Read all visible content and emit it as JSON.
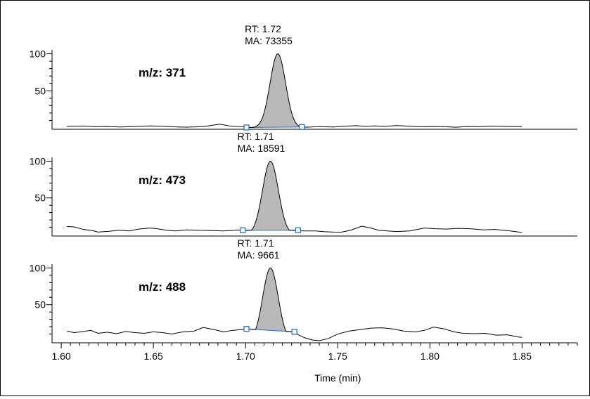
{
  "chart_data": {
    "type": "line",
    "xlabel": "Time (min)",
    "xlim": [
      1.595,
      1.88
    ],
    "x_ticks": [
      "1.60",
      "1.65",
      "1.70",
      "1.75",
      "1.80",
      "1.85"
    ],
    "x_tick_values": [
      1.6,
      1.65,
      1.7,
      1.75,
      1.8,
      1.85
    ],
    "ylim": [
      0,
      110
    ],
    "y_ticks": [
      "50",
      "100"
    ],
    "y_tick_values": [
      50,
      100
    ],
    "colors": {
      "trace": "#000000",
      "peak_fill": "#b9b9b9",
      "baseline": "#3a7fd0",
      "marker": "#2a6fcf"
    },
    "panels": [
      {
        "trace_label": "m/z: 371",
        "peak": {
          "rt_label": "RT: 1.72",
          "ma_label": "MA: 73355",
          "rt": 1.7175,
          "sigma": 0.0042,
          "height": 100,
          "start": 1.7005,
          "end": 1.7305,
          "baseline_start": 0.5,
          "baseline_end": 1.2,
          "noise": [
            [
              1.603,
              2.0
            ],
            [
              1.612,
              2.5
            ],
            [
              1.618,
              1.5
            ],
            [
              1.625,
              1.8
            ],
            [
              1.632,
              1.2
            ],
            [
              1.641,
              1.9
            ],
            [
              1.648,
              2.6
            ],
            [
              1.655,
              2.3
            ],
            [
              1.66,
              1.4
            ],
            [
              1.668,
              1.0
            ],
            [
              1.673,
              1.3
            ],
            [
              1.678,
              2.0
            ],
            [
              1.686,
              5.0
            ],
            [
              1.692,
              2.2
            ],
            [
              1.697,
              1.6
            ],
            [
              1.7,
              1.4
            ],
            [
              1.733,
              1.0
            ],
            [
              1.74,
              1.6
            ],
            [
              1.748,
              1.2
            ],
            [
              1.755,
              2.4
            ],
            [
              1.76,
              3.0
            ],
            [
              1.765,
              2.0
            ],
            [
              1.77,
              2.6
            ],
            [
              1.775,
              2.0
            ],
            [
              1.782,
              3.1
            ],
            [
              1.789,
              2.2
            ],
            [
              1.795,
              1.4
            ],
            [
              1.8,
              1.8
            ],
            [
              1.808,
              1.6
            ],
            [
              1.814,
              0.8
            ],
            [
              1.82,
              1.8
            ],
            [
              1.827,
              1.5
            ],
            [
              1.833,
              2.4
            ],
            [
              1.84,
              2.0
            ],
            [
              1.846,
              1.7
            ],
            [
              1.85,
              1.8
            ]
          ]
        }
      },
      {
        "trace_label": "m/z: 473",
        "peak": {
          "rt_label": "RT: 1.71",
          "ma_label": "MA: 18591",
          "rt": 1.7135,
          "sigma": 0.0043,
          "height": 100,
          "start": 1.6985,
          "end": 1.7285,
          "baseline_start": 6.0,
          "baseline_end": 6.0,
          "noise": [
            [
              1.603,
              11.0
            ],
            [
              1.607,
              10.5
            ],
            [
              1.612,
              7.0
            ],
            [
              1.617,
              5.5
            ],
            [
              1.62,
              3.5
            ],
            [
              1.626,
              4.5
            ],
            [
              1.631,
              6.0
            ],
            [
              1.637,
              5.0
            ],
            [
              1.642,
              7.5
            ],
            [
              1.648,
              9.0
            ],
            [
              1.652,
              8.0
            ],
            [
              1.657,
              6.0
            ],
            [
              1.662,
              5.0
            ],
            [
              1.668,
              6.5
            ],
            [
              1.675,
              5.8
            ],
            [
              1.682,
              5.5
            ],
            [
              1.688,
              5.0
            ],
            [
              1.694,
              6.0
            ],
            [
              1.697,
              6.2
            ],
            [
              1.731,
              5.0
            ],
            [
              1.738,
              5.0
            ],
            [
              1.743,
              4.0
            ],
            [
              1.748,
              3.5
            ],
            [
              1.752,
              3.4
            ],
            [
              1.757,
              6.0
            ],
            [
              1.763,
              11.5
            ],
            [
              1.768,
              9.0
            ],
            [
              1.772,
              6.0
            ],
            [
              1.777,
              5.0
            ],
            [
              1.782,
              4.2
            ],
            [
              1.789,
              5.0
            ],
            [
              1.797,
              9.0
            ],
            [
              1.803,
              8.0
            ],
            [
              1.809,
              7.5
            ],
            [
              1.815,
              8.5
            ],
            [
              1.822,
              8.0
            ],
            [
              1.829,
              6.5
            ],
            [
              1.835,
              7.0
            ],
            [
              1.842,
              5.5
            ],
            [
              1.85,
              3.0
            ]
          ]
        }
      },
      {
        "trace_label": "m/z: 488",
        "peak": {
          "rt_label": "RT: 1.71",
          "ma_label": "MA: 9661",
          "rt": 1.7135,
          "sigma": 0.0042,
          "height": 100,
          "start": 1.7005,
          "end": 1.7265,
          "baseline_start": 17.0,
          "baseline_end": 13.0,
          "noise": [
            [
              1.603,
              14.0
            ],
            [
              1.607,
              12.0
            ],
            [
              1.612,
              13.5
            ],
            [
              1.616,
              15.0
            ],
            [
              1.62,
              11.0
            ],
            [
              1.625,
              12.5
            ],
            [
              1.63,
              10.5
            ],
            [
              1.635,
              13.5
            ],
            [
              1.64,
              12.0
            ],
            [
              1.645,
              11.0
            ],
            [
              1.65,
              13.0
            ],
            [
              1.655,
              12.0
            ],
            [
              1.66,
              10.0
            ],
            [
              1.666,
              13.0
            ],
            [
              1.672,
              14.0
            ],
            [
              1.677,
              19.0
            ],
            [
              1.683,
              16.0
            ],
            [
              1.688,
              13.0
            ],
            [
              1.693,
              15.0
            ],
            [
              1.697,
              16.0
            ],
            [
              1.7,
              16.5
            ],
            [
              1.729,
              8.5
            ],
            [
              1.732,
              5.0
            ],
            [
              1.736,
              2.0
            ],
            [
              1.74,
              1.0
            ],
            [
              1.745,
              4.0
            ],
            [
              1.75,
              10.0
            ],
            [
              1.756,
              14.0
            ],
            [
              1.762,
              16.0
            ],
            [
              1.768,
              18.0
            ],
            [
              1.774,
              18.5
            ],
            [
              1.78,
              17.0
            ],
            [
              1.786,
              14.0
            ],
            [
              1.792,
              13.0
            ],
            [
              1.797,
              15.0
            ],
            [
              1.802,
              19.5
            ],
            [
              1.808,
              17.0
            ],
            [
              1.813,
              13.0
            ],
            [
              1.818,
              11.0
            ],
            [
              1.824,
              10.5
            ],
            [
              1.83,
              11.0
            ],
            [
              1.836,
              8.5
            ],
            [
              1.842,
              9.0
            ],
            [
              1.848,
              6.0
            ],
            [
              1.85,
              5.5
            ]
          ]
        }
      }
    ]
  }
}
